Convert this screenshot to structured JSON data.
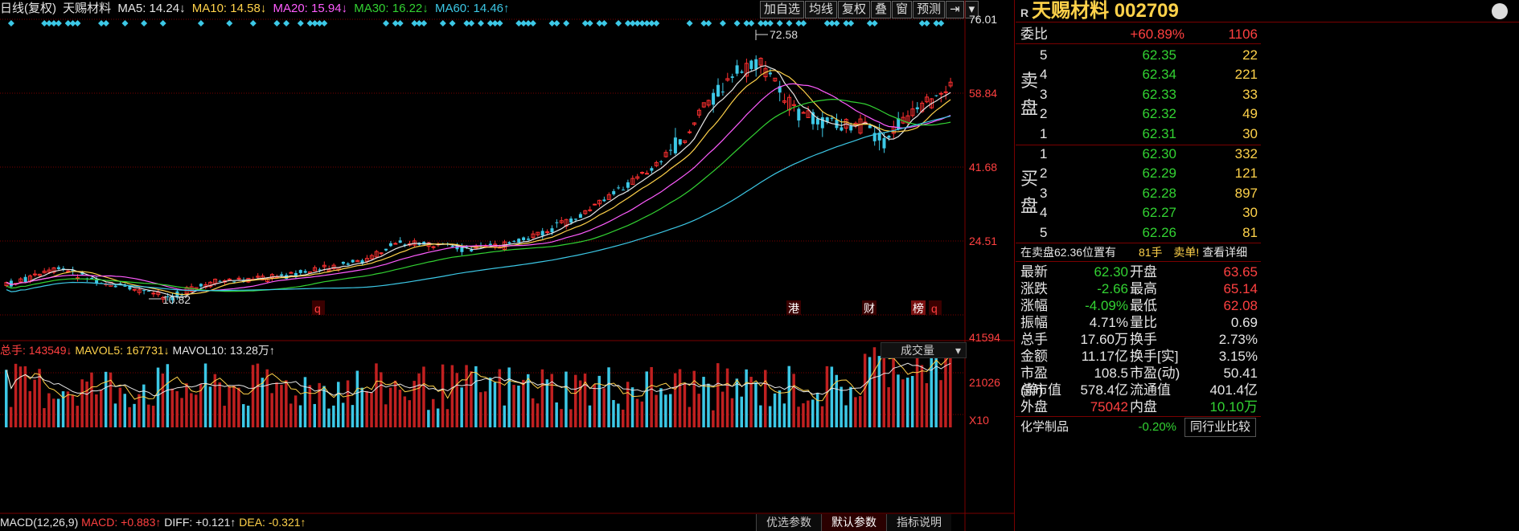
{
  "header": {
    "period": "日线(复权)",
    "stock": "天赐材料",
    "ma5": "MA5: 14.24↓",
    "ma10": "MA10: 14.58↓",
    "ma20": "MA20: 15.94↓",
    "ma30": "MA30: 16.22↓",
    "ma60": "MA60: 14.46↑"
  },
  "toolbar": [
    "加自选",
    "均线",
    "复权",
    "叠",
    "窗",
    "预测",
    "⇥",
    "▾"
  ],
  "price_axis": [
    "76.01",
    "58.84",
    "41.68",
    "24.51"
  ],
  "price_labels": {
    "high": "72.58",
    "low": "10.82"
  },
  "markers": [
    {
      "t": "q",
      "color": "#ff4040"
    },
    {
      "t": "港",
      "color": "#ffffff"
    },
    {
      "t": "财",
      "color": "#ffffff"
    },
    {
      "t": "榜",
      "color": "#ffffff"
    },
    {
      "t": "q",
      "color": "#ff4040"
    }
  ],
  "volume": {
    "total": "总手: 143549↓",
    "mavol5": "MAVOL5: 167731↓",
    "mavol10": "MAVOL10: 13.28万↑",
    "select": "成交量",
    "axis": [
      "41594",
      "21026",
      "X10"
    ]
  },
  "macd": {
    "label": "MACD(12,26,9)",
    "macd": "MACD: +0.883↑",
    "diff": "DIFF: +0.121↑",
    "dea": "DEA: -0.321↑"
  },
  "tabs": [
    "优选参数",
    "默认参数",
    "指标说明"
  ],
  "quote": {
    "name": "天赐材料 002709",
    "r": "R",
    "weibi": {
      "label": "委比",
      "pct": "+60.89%",
      "val": "1106"
    },
    "sell_label": "卖盘",
    "buy_label": "买盘",
    "sell": [
      {
        "n": "5",
        "p": "62.35",
        "v": "22"
      },
      {
        "n": "4",
        "p": "62.34",
        "v": "221"
      },
      {
        "n": "3",
        "p": "62.33",
        "v": "33"
      },
      {
        "n": "2",
        "p": "62.32",
        "v": "49"
      },
      {
        "n": "1",
        "p": "62.31",
        "v": "30"
      }
    ],
    "buy": [
      {
        "n": "1",
        "p": "62.30",
        "v": "332"
      },
      {
        "n": "2",
        "p": "62.29",
        "v": "121"
      },
      {
        "n": "3",
        "p": "62.28",
        "v": "897"
      },
      {
        "n": "4",
        "p": "62.27",
        "v": "30"
      },
      {
        "n": "5",
        "p": "62.26",
        "v": "81"
      }
    ],
    "pos": {
      "text": "在卖盘62.36位置有",
      "qty": "81手",
      "sell": "卖单!",
      "link": "查看详细"
    },
    "stats": [
      {
        "l1": "最新",
        "v1": "62.30",
        "c1": "green",
        "l2": "开盘",
        "v2": "63.65",
        "c2": "red"
      },
      {
        "l1": "涨跌",
        "v1": "-2.66",
        "c1": "green",
        "l2": "最高",
        "v2": "65.14",
        "c2": "red"
      },
      {
        "l1": "涨幅",
        "v1": "-4.09%",
        "c1": "green",
        "l2": "最低",
        "v2": "62.08",
        "c2": "red"
      },
      {
        "l1": "振幅",
        "v1": "4.71%",
        "c1": "white",
        "l2": "量比",
        "v2": "0.69",
        "c2": "white"
      },
      {
        "l1": "总手",
        "v1": "17.60万",
        "c1": "white",
        "l2": "换手",
        "v2": "2.73%",
        "c2": "white"
      },
      {
        "l1": "金额",
        "v1": "11.17亿",
        "c1": "white",
        "l2": "换手[实]",
        "v2": "3.15%",
        "c2": "white"
      },
      {
        "l1": "市盈(静)",
        "v1": "108.5",
        "c1": "white",
        "l2": "市盈(动)",
        "v2": "50.41",
        "c2": "white"
      },
      {
        "l1": "总市值",
        "v1": "578.4亿",
        "c1": "white",
        "l2": "流通值",
        "v2": "401.4亿",
        "c2": "white"
      },
      {
        "l1": "外盘",
        "v1": "75042",
        "c1": "red",
        "l2": "内盘",
        "v2": "10.10万",
        "c2": "green"
      }
    ],
    "industry": {
      "name": "化学制品",
      "pct": "-0.20%",
      "btn": "同行业比较"
    }
  }
}
